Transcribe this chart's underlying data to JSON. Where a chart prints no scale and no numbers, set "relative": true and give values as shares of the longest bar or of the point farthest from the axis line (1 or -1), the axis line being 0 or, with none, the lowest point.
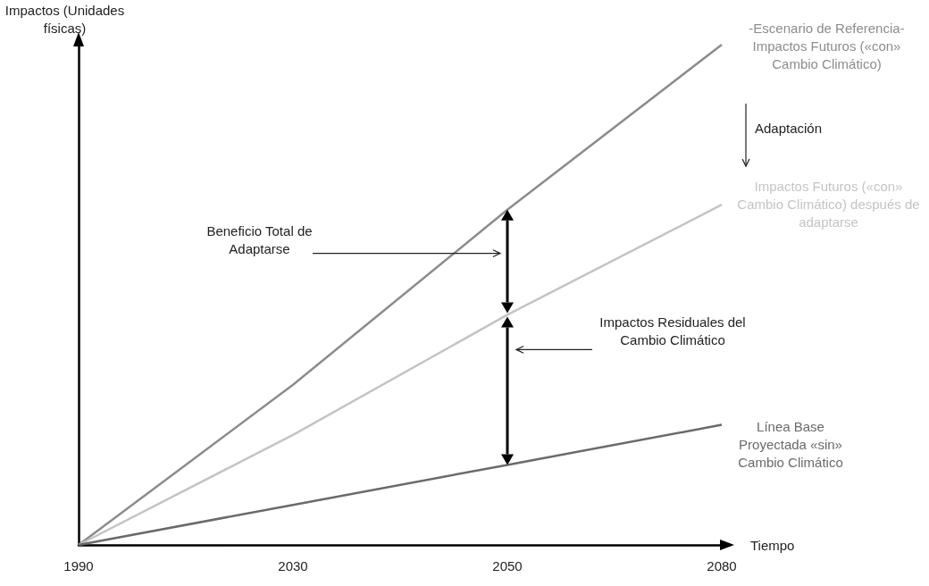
{
  "chart_data": {
    "type": "line",
    "relative": true,
    "xlabel": "Tiempo",
    "ylabel": "Impactos (Unidades físicas)",
    "categories": [
      "1990",
      "2030",
      "2050",
      "2080"
    ],
    "series": [
      {
        "name": "-Escenario de Referencia- Impactos Futuros («con» Cambio Climático)",
        "color": "#8c8c8c",
        "values": [
          0,
          0.32,
          0.67,
          1
        ]
      },
      {
        "name": "Impactos Futuros («con» Cambio Climático) después de adaptarse",
        "color": "#c4c4c4",
        "values": [
          0,
          0.22,
          0.46,
          0.68
        ]
      },
      {
        "name": "Línea Base Proyectada «sin» Cambio Climático",
        "color": "#6a6a6a",
        "values": [
          0,
          0.08,
          0.16,
          0.24
        ]
      }
    ],
    "annotations": [
      "Adaptación",
      "Beneficio Total de Adaptarse",
      "Impactos Residuales del Cambio Climático"
    ],
    "grid": false,
    "marker": "none",
    "line_style": "solid"
  }
}
